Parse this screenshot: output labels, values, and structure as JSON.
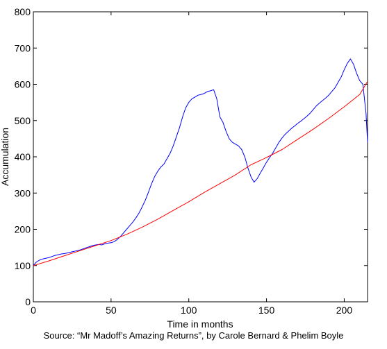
{
  "chart_data": {
    "type": "line",
    "title": "",
    "xlabel": "Time in months",
    "ylabel": "Accumulation",
    "xlim": [
      0,
      215
    ],
    "ylim": [
      0,
      800
    ],
    "xticks": [
      0,
      50,
      100,
      150,
      200
    ],
    "yticks": [
      0,
      100,
      200,
      300,
      400,
      500,
      600,
      700,
      800
    ],
    "grid": false,
    "colors": {
      "series_1": "#0000ff",
      "series_2": "#ff0000"
    },
    "series": [
      {
        "color": "#0000ff",
        "x": [
          0,
          2,
          4,
          6,
          8,
          10,
          12,
          14,
          16,
          18,
          20,
          22,
          24,
          26,
          28,
          30,
          32,
          34,
          36,
          38,
          40,
          42,
          44,
          46,
          48,
          50,
          52,
          54,
          56,
          58,
          60,
          62,
          64,
          66,
          68,
          70,
          72,
          74,
          76,
          78,
          80,
          82,
          84,
          86,
          88,
          90,
          92,
          94,
          96,
          98,
          100,
          102,
          104,
          106,
          108,
          110,
          112,
          114,
          116,
          118,
          120,
          122,
          124,
          126,
          128,
          130,
          132,
          134,
          136,
          138,
          140,
          142,
          144,
          146,
          148,
          150,
          152,
          154,
          156,
          158,
          160,
          162,
          164,
          166,
          168,
          170,
          172,
          174,
          176,
          178,
          180,
          182,
          184,
          186,
          188,
          190,
          192,
          194,
          196,
          198,
          200,
          202,
          204,
          206,
          208,
          210,
          212,
          214,
          215
        ],
        "y": [
          100,
          110,
          115,
          118,
          120,
          122,
          125,
          128,
          130,
          132,
          133,
          135,
          137,
          139,
          141,
          143,
          146,
          149,
          152,
          155,
          157,
          158,
          157,
          160,
          162,
          163,
          166,
          172,
          180,
          190,
          200,
          210,
          220,
          232,
          245,
          262,
          280,
          302,
          325,
          345,
          360,
          372,
          380,
          395,
          410,
          430,
          455,
          480,
          510,
          535,
          550,
          560,
          565,
          570,
          572,
          575,
          580,
          582,
          585,
          560,
          510,
          495,
          470,
          450,
          440,
          435,
          430,
          420,
          400,
          370,
          345,
          330,
          340,
          355,
          370,
          385,
          398,
          410,
          425,
          440,
          452,
          462,
          470,
          478,
          485,
          492,
          498,
          505,
          512,
          520,
          530,
          540,
          548,
          555,
          562,
          570,
          580,
          590,
          605,
          620,
          640,
          658,
          670,
          655,
          630,
          610,
          600,
          520,
          440
        ]
      },
      {
        "color": "#ff0000",
        "x": [
          0,
          10,
          20,
          30,
          40,
          50,
          60,
          70,
          80,
          90,
          100,
          110,
          120,
          130,
          140,
          150,
          160,
          170,
          180,
          190,
          200,
          210,
          215
        ],
        "y": [
          100,
          113,
          127,
          141,
          155,
          169,
          186,
          206,
          228,
          252,
          276,
          302,
          326,
          350,
          378,
          398,
          420,
          448,
          476,
          506,
          538,
          572,
          608
        ]
      }
    ]
  },
  "source_text": "Source: “Mr Madoff’s Amazing Returns”, by Carole Bernard & Phelim Boyle"
}
